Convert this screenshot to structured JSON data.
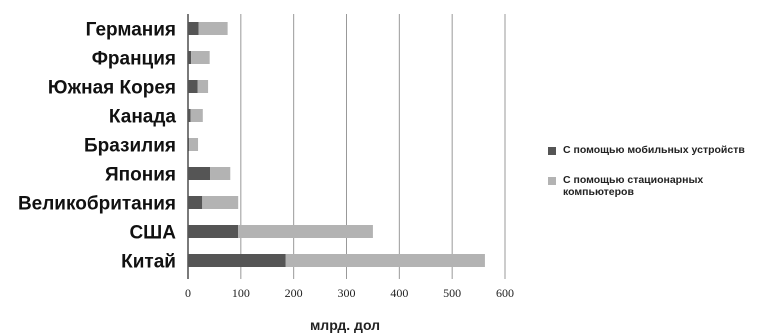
{
  "chart_data": {
    "type": "bar",
    "orientation": "horizontal",
    "stacked": true,
    "categories": [
      "Германия",
      "Франция",
      "Южная Корея",
      "Канада",
      "Бразилия",
      "Япония",
      "Великобритания",
      "США",
      "Китай"
    ],
    "series": [
      {
        "name": "С помощью мобильных устройств",
        "color": "#555555",
        "values": [
          20,
          6,
          18,
          5,
          2,
          42,
          27,
          95,
          185
        ]
      },
      {
        "name": "С помощью стационарных компьютеров",
        "color": "#b3b3b3",
        "values": [
          55,
          35,
          20,
          23,
          17,
          38,
          68,
          255,
          377
        ]
      }
    ],
    "xlabel": "млрд. дол",
    "xlim": [
      0,
      600
    ],
    "xticks": [
      0,
      100,
      200,
      300,
      400,
      500,
      600
    ],
    "grid": true,
    "legend_position": "right"
  }
}
